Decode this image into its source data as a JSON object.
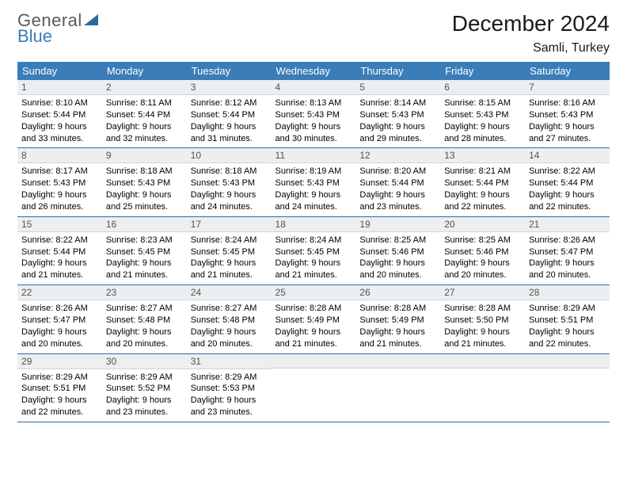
{
  "logo": {
    "word1": "General",
    "word2": "Blue"
  },
  "title": "December 2024",
  "location": "Samli, Turkey",
  "colors": {
    "header_bg": "#3a7db8",
    "header_text": "#ffffff",
    "daynum_bg": "#eceff1",
    "daynum_text": "#525252",
    "row_border": "#2e6ca3",
    "body_text": "#000000",
    "logo_gray": "#5a5a5a",
    "logo_blue": "#3a7db8"
  },
  "weekdays": [
    "Sunday",
    "Monday",
    "Tuesday",
    "Wednesday",
    "Thursday",
    "Friday",
    "Saturday"
  ],
  "weeks": [
    [
      {
        "n": "1",
        "sr": "8:10 AM",
        "ss": "5:44 PM",
        "dl": "9 hours and 33 minutes."
      },
      {
        "n": "2",
        "sr": "8:11 AM",
        "ss": "5:44 PM",
        "dl": "9 hours and 32 minutes."
      },
      {
        "n": "3",
        "sr": "8:12 AM",
        "ss": "5:44 PM",
        "dl": "9 hours and 31 minutes."
      },
      {
        "n": "4",
        "sr": "8:13 AM",
        "ss": "5:43 PM",
        "dl": "9 hours and 30 minutes."
      },
      {
        "n": "5",
        "sr": "8:14 AM",
        "ss": "5:43 PM",
        "dl": "9 hours and 29 minutes."
      },
      {
        "n": "6",
        "sr": "8:15 AM",
        "ss": "5:43 PM",
        "dl": "9 hours and 28 minutes."
      },
      {
        "n": "7",
        "sr": "8:16 AM",
        "ss": "5:43 PM",
        "dl": "9 hours and 27 minutes."
      }
    ],
    [
      {
        "n": "8",
        "sr": "8:17 AM",
        "ss": "5:43 PM",
        "dl": "9 hours and 26 minutes."
      },
      {
        "n": "9",
        "sr": "8:18 AM",
        "ss": "5:43 PM",
        "dl": "9 hours and 25 minutes."
      },
      {
        "n": "10",
        "sr": "8:18 AM",
        "ss": "5:43 PM",
        "dl": "9 hours and 24 minutes."
      },
      {
        "n": "11",
        "sr": "8:19 AM",
        "ss": "5:43 PM",
        "dl": "9 hours and 24 minutes."
      },
      {
        "n": "12",
        "sr": "8:20 AM",
        "ss": "5:44 PM",
        "dl": "9 hours and 23 minutes."
      },
      {
        "n": "13",
        "sr": "8:21 AM",
        "ss": "5:44 PM",
        "dl": "9 hours and 22 minutes."
      },
      {
        "n": "14",
        "sr": "8:22 AM",
        "ss": "5:44 PM",
        "dl": "9 hours and 22 minutes."
      }
    ],
    [
      {
        "n": "15",
        "sr": "8:22 AM",
        "ss": "5:44 PM",
        "dl": "9 hours and 21 minutes."
      },
      {
        "n": "16",
        "sr": "8:23 AM",
        "ss": "5:45 PM",
        "dl": "9 hours and 21 minutes."
      },
      {
        "n": "17",
        "sr": "8:24 AM",
        "ss": "5:45 PM",
        "dl": "9 hours and 21 minutes."
      },
      {
        "n": "18",
        "sr": "8:24 AM",
        "ss": "5:45 PM",
        "dl": "9 hours and 21 minutes."
      },
      {
        "n": "19",
        "sr": "8:25 AM",
        "ss": "5:46 PM",
        "dl": "9 hours and 20 minutes."
      },
      {
        "n": "20",
        "sr": "8:25 AM",
        "ss": "5:46 PM",
        "dl": "9 hours and 20 minutes."
      },
      {
        "n": "21",
        "sr": "8:26 AM",
        "ss": "5:47 PM",
        "dl": "9 hours and 20 minutes."
      }
    ],
    [
      {
        "n": "22",
        "sr": "8:26 AM",
        "ss": "5:47 PM",
        "dl": "9 hours and 20 minutes."
      },
      {
        "n": "23",
        "sr": "8:27 AM",
        "ss": "5:48 PM",
        "dl": "9 hours and 20 minutes."
      },
      {
        "n": "24",
        "sr": "8:27 AM",
        "ss": "5:48 PM",
        "dl": "9 hours and 20 minutes."
      },
      {
        "n": "25",
        "sr": "8:28 AM",
        "ss": "5:49 PM",
        "dl": "9 hours and 21 minutes."
      },
      {
        "n": "26",
        "sr": "8:28 AM",
        "ss": "5:49 PM",
        "dl": "9 hours and 21 minutes."
      },
      {
        "n": "27",
        "sr": "8:28 AM",
        "ss": "5:50 PM",
        "dl": "9 hours and 21 minutes."
      },
      {
        "n": "28",
        "sr": "8:29 AM",
        "ss": "5:51 PM",
        "dl": "9 hours and 22 minutes."
      }
    ],
    [
      {
        "n": "29",
        "sr": "8:29 AM",
        "ss": "5:51 PM",
        "dl": "9 hours and 22 minutes."
      },
      {
        "n": "30",
        "sr": "8:29 AM",
        "ss": "5:52 PM",
        "dl": "9 hours and 23 minutes."
      },
      {
        "n": "31",
        "sr": "8:29 AM",
        "ss": "5:53 PM",
        "dl": "9 hours and 23 minutes."
      },
      null,
      null,
      null,
      null
    ]
  ],
  "labels": {
    "sunrise": "Sunrise:",
    "sunset": "Sunset:",
    "daylight": "Daylight:"
  }
}
